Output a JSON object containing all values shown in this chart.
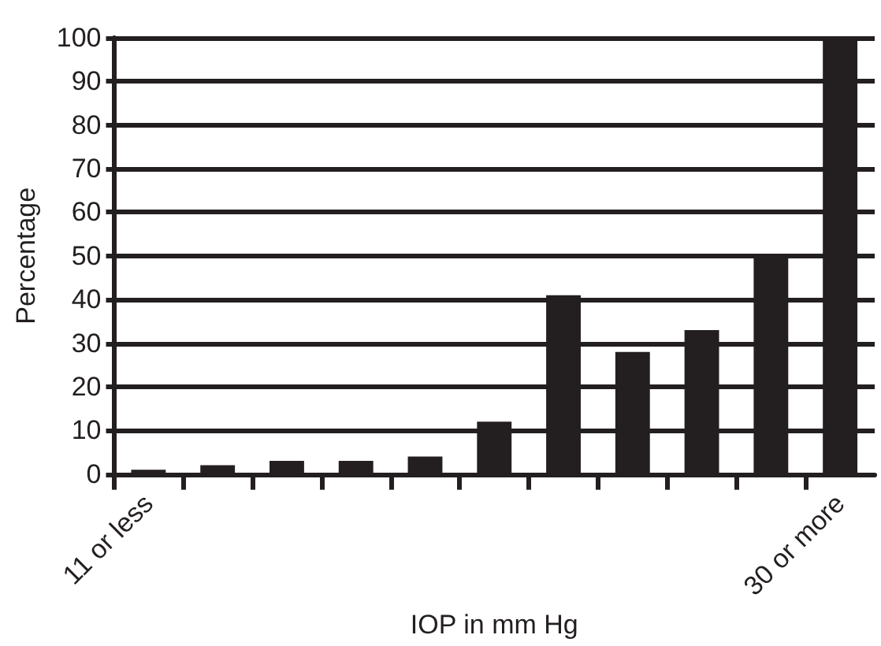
{
  "chart_data": {
    "type": "bar",
    "xlabel": "IOP in mm Hg",
    "ylabel": "Percentage",
    "categories": [
      "11 or less",
      null,
      null,
      null,
      null,
      null,
      null,
      null,
      null,
      null,
      "30 or more"
    ],
    "values": [
      1,
      2,
      3,
      3,
      4,
      12,
      41,
      28,
      33,
      50,
      100
    ],
    "color": "#231f20",
    "ylim": [
      0,
      100
    ],
    "yticks": [
      0,
      10,
      20,
      30,
      40,
      50,
      60,
      70,
      80,
      90,
      100
    ],
    "grid": "y"
  }
}
